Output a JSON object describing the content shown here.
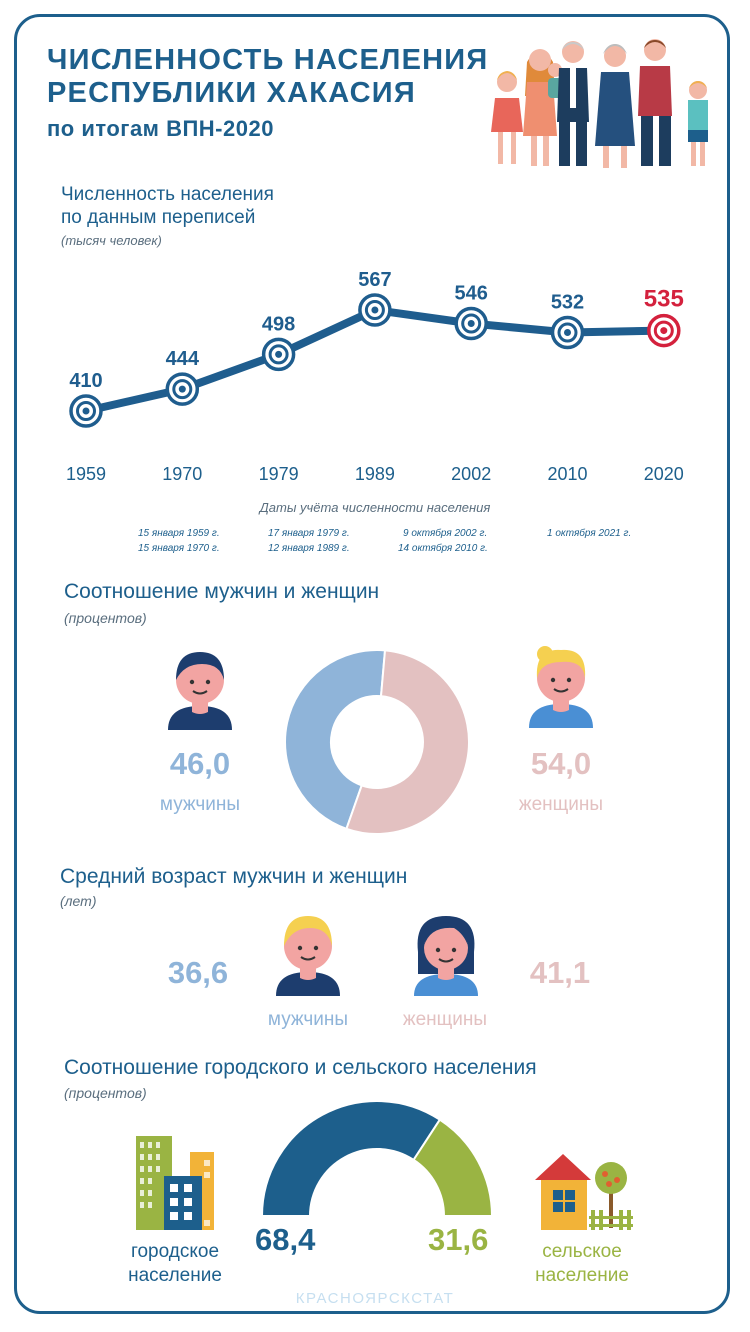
{
  "header": {
    "title_line1": "ЧИСЛЕННОСТЬ НАСЕЛЕНИЯ",
    "title_line2": "РЕСПУБЛИКИ ХАКАСИЯ",
    "subtitle": "по итогам ВПН-2020"
  },
  "population": {
    "heading_line1": "Численность населения",
    "heading_line2": "по данным переписей",
    "unit": "(тысяч человек)",
    "axis_caption": "Даты учёта численности населения",
    "census_dates": {
      "c1959": "15 января 1959 г.",
      "c1970": "15 января 1970 г.",
      "c1979": "17 января 1979 г.",
      "c1989": "12 января 1989 г.",
      "c2002": "9 октября 2002 г.",
      "c2010": "14 октября 2010 г.",
      "c2020": "1 октября 2021 г."
    }
  },
  "gender_ratio": {
    "heading": "Соотношение мужчин и женщин",
    "unit": "(процентов)",
    "male_value": "46,0",
    "male_label": "мужчины",
    "female_value": "54,0",
    "female_label": "женщины"
  },
  "median_age": {
    "heading": "Средний возраст мужчин и женщин",
    "unit": "(лет)",
    "male_value": "36,6",
    "male_label": "мужчины",
    "female_value": "41,1",
    "female_label": "женщины"
  },
  "urban_rural": {
    "heading": "Соотношение городского и сельского населения",
    "unit": "(процентов)",
    "urban_value": "68,4",
    "urban_label_line1": "городское",
    "urban_label_line2": "население",
    "rural_value": "31,6",
    "rural_label_line1": "сельское",
    "rural_label_line2": "население"
  },
  "footer": {
    "watermark": "КРАСНОЯРСКСТАТ"
  },
  "colors": {
    "primary": "#1d5f8c",
    "line": "#1f5d8e",
    "highlight": "#d4213d",
    "male": "#8fb4d9",
    "female": "#e3c1c1",
    "urban": "#1d5f8c",
    "rural": "#9ab443"
  },
  "icons": {
    "family": "family-illustration",
    "man": "man-avatar-icon",
    "woman": "woman-avatar-icon",
    "city": "city-buildings-icon",
    "village": "village-house-icon"
  },
  "chart_data": [
    {
      "type": "line",
      "x": [
        "1959",
        "1970",
        "1979",
        "1989",
        "2002",
        "2010",
        "2020"
      ],
      "series": [
        {
          "values": [
            410,
            444,
            498,
            567,
            546,
            532,
            535
          ]
        }
      ],
      "data_labels": [
        "410",
        "444",
        "498",
        "567",
        "546",
        "532",
        "535"
      ],
      "highlight_index": 6,
      "grid": false
    },
    {
      "type": "pie",
      "categories": [
        "мужчины",
        "женщины"
      ],
      "values": [
        46.0,
        54.0
      ],
      "donut": true
    },
    {
      "type": "pie",
      "categories": [
        "городское население",
        "сельское население"
      ],
      "values": [
        68.4,
        31.6
      ],
      "half_donut": true
    }
  ]
}
